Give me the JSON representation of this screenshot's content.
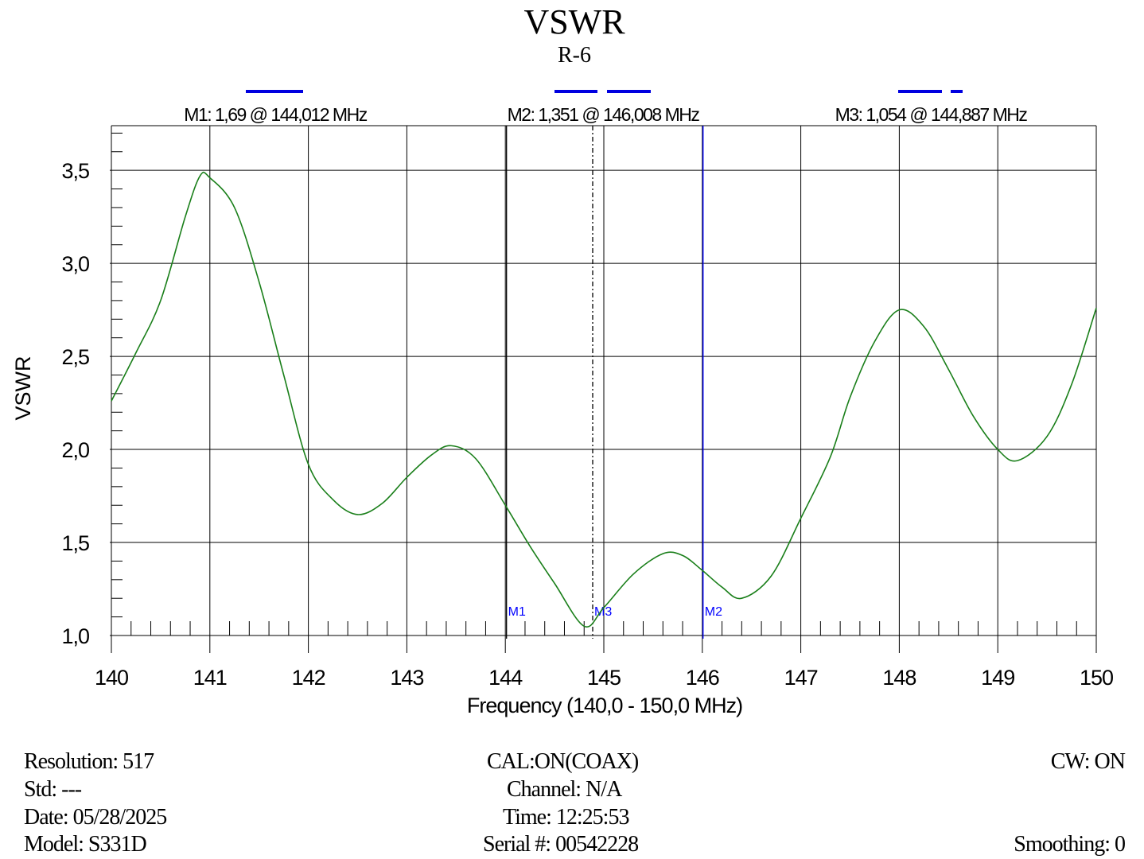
{
  "chart_data": {
    "type": "line",
    "title": "VSWR",
    "subtitle": "R-6",
    "xlabel": "Frequency (140,0 - 150,0 MHz)",
    "ylabel": "VSWR",
    "xlim": [
      140,
      150
    ],
    "ylim": [
      1.0,
      3.74
    ],
    "xticks": [
      "140",
      "141",
      "142",
      "143",
      "144",
      "145",
      "146",
      "147",
      "148",
      "149",
      "150"
    ],
    "yticks": [
      {
        "v": 1.0,
        "label": "1,0"
      },
      {
        "v": 1.5,
        "label": "1,5"
      },
      {
        "v": 2.0,
        "label": "2,0"
      },
      {
        "v": 2.5,
        "label": "2,5"
      },
      {
        "v": 3.0,
        "label": "3,0"
      },
      {
        "v": 3.5,
        "label": "3,5"
      }
    ],
    "grid": true,
    "series": [
      {
        "name": "VSWR",
        "color": "#1a7f1a",
        "x": [
          140,
          140.25,
          140.5,
          140.75,
          140.9,
          141,
          141.25,
          141.5,
          141.75,
          142,
          142.25,
          142.5,
          142.75,
          143,
          143.25,
          143.45,
          143.7,
          144,
          144.25,
          144.5,
          144.8,
          145,
          145.3,
          145.6,
          145.8,
          146,
          146.2,
          146.4,
          146.7,
          147,
          147.3,
          147.5,
          147.75,
          148,
          148.25,
          148.5,
          148.75,
          149,
          149.2,
          149.5,
          149.75,
          150
        ],
        "y": [
          2.26,
          2.52,
          2.8,
          3.25,
          3.47,
          3.46,
          3.3,
          2.9,
          2.4,
          1.92,
          1.73,
          1.65,
          1.71,
          1.85,
          1.97,
          2.02,
          1.95,
          1.7,
          1.48,
          1.28,
          1.05,
          1.15,
          1.33,
          1.44,
          1.43,
          1.35,
          1.26,
          1.2,
          1.32,
          1.63,
          1.96,
          2.28,
          2.58,
          2.75,
          2.66,
          2.43,
          2.18,
          2.0,
          1.94,
          2.07,
          2.35,
          2.76
        ]
      }
    ],
    "markers": [
      {
        "name": "M1",
        "freq": 144.012,
        "label": "M1: 1,69  @ 144,012 MHz",
        "style": "solid-black"
      },
      {
        "name": "M2",
        "freq": 146.008,
        "label": "M2: 1,351  @ 146,008 MHz",
        "style": "solid-blue"
      },
      {
        "name": "M3",
        "freq": 144.887,
        "label": "M3: 1,054  @ 144,887 MHz",
        "style": "dashed"
      }
    ]
  },
  "footer": {
    "resolution": "Resolution:  517",
    "std": "Std: ---",
    "date": "Date: 05/28/2025",
    "model": "Model: S331D",
    "cal": "CAL:ON(COAX)",
    "channel": "Channel: N/A",
    "time": "Time: 12:25:53",
    "serial": "Serial #: 00542228",
    "cw": "CW: ON",
    "smoothing": "Smoothing:  0"
  }
}
